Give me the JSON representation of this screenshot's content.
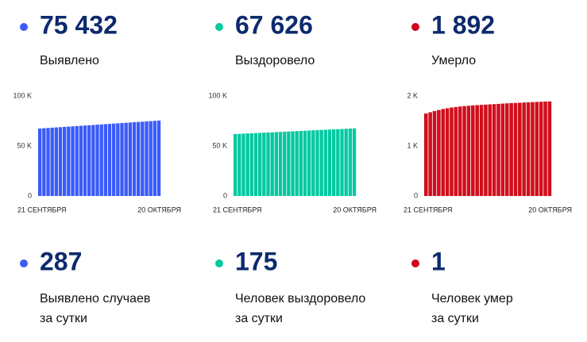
{
  "stats": [
    {
      "value": "75 432",
      "label": "Выявлено",
      "color": "#3d5cf5"
    },
    {
      "value": "67 626",
      "label": "Выздоровело",
      "color": "#00c9a0"
    },
    {
      "value": "1 892",
      "label": "Умерло",
      "color": "#d0021b"
    }
  ],
  "daily": [
    {
      "value": "287",
      "label": [
        "Выявлено случаев",
        "за сутки"
      ],
      "color": "#3d5cf5"
    },
    {
      "value": "175",
      "label": [
        "Человек выздоровело",
        "за сутки"
      ],
      "color": "#00c9a0"
    },
    {
      "value": "1",
      "label": [
        "Человек умер",
        "за сутки"
      ],
      "color": "#d0021b"
    }
  ],
  "chart_data": [
    {
      "type": "bar",
      "color": "#3b5bfa",
      "categories": [
        "21 СЕНТЯБРЯ",
        null,
        null,
        null,
        null,
        null,
        null,
        null,
        null,
        null,
        null,
        null,
        null,
        null,
        null,
        null,
        null,
        null,
        null,
        null,
        null,
        null,
        null,
        null,
        null,
        null,
        null,
        null,
        null,
        "20 ОКТЯБРЯ"
      ],
      "values": [
        67500,
        67774,
        68047,
        68321,
        68594,
        68868,
        69141,
        69415,
        69688,
        69962,
        70235,
        70509,
        70782,
        71056,
        71329,
        71603,
        71876,
        72150,
        72423,
        72697,
        72970,
        73244,
        73517,
        73791,
        74064,
        74338,
        74611,
        74885,
        75158,
        75432
      ],
      "ylim": [
        0,
        100000
      ],
      "yticks": [
        0,
        {
          "value": 50000,
          "label": "50 K"
        },
        {
          "value": 100000,
          "label": "100 K"
        }
      ]
    },
    {
      "type": "bar",
      "color": "#04c9a1",
      "categories": [
        "21 СЕНТЯБРЯ",
        null,
        null,
        null,
        null,
        null,
        null,
        null,
        null,
        null,
        null,
        null,
        null,
        null,
        null,
        null,
        null,
        null,
        null,
        null,
        null,
        null,
        null,
        null,
        null,
        null,
        null,
        null,
        null,
        "20 ОКТЯБРЯ"
      ],
      "values": [
        62000,
        62194,
        62388,
        62582,
        62776,
        62970,
        63164,
        63358,
        63552,
        63746,
        63940,
        64134,
        64328,
        64522,
        64716,
        64910,
        65104,
        65298,
        65492,
        65686,
        65880,
        66074,
        66268,
        66462,
        66656,
        66850,
        67044,
        67238,
        67432,
        67626
      ],
      "ylim": [
        0,
        100000
      ],
      "yticks": [
        0,
        {
          "value": 50000,
          "label": "50 K"
        },
        {
          "value": 100000,
          "label": "100 K"
        }
      ]
    },
    {
      "type": "bar",
      "color": "#d00f1c",
      "categories": [
        "21 СЕНТЯБРЯ",
        null,
        null,
        null,
        null,
        null,
        null,
        null,
        null,
        null,
        null,
        null,
        null,
        null,
        null,
        null,
        null,
        null,
        null,
        null,
        null,
        null,
        null,
        null,
        null,
        null,
        null,
        null,
        null,
        "20 ОКТЯБРЯ"
      ],
      "values": [
        1650,
        1675,
        1700,
        1720,
        1740,
        1755,
        1770,
        1780,
        1790,
        1798,
        1805,
        1812,
        1818,
        1823,
        1828,
        1833,
        1838,
        1843,
        1848,
        1853,
        1858,
        1862,
        1866,
        1870,
        1874,
        1878,
        1882,
        1885,
        1889,
        1892
      ],
      "ylim": [
        0,
        2000
      ],
      "yticks": [
        0,
        {
          "value": 1000,
          "label": "1 K"
        },
        {
          "value": 2000,
          "label": "2 K"
        }
      ]
    }
  ]
}
